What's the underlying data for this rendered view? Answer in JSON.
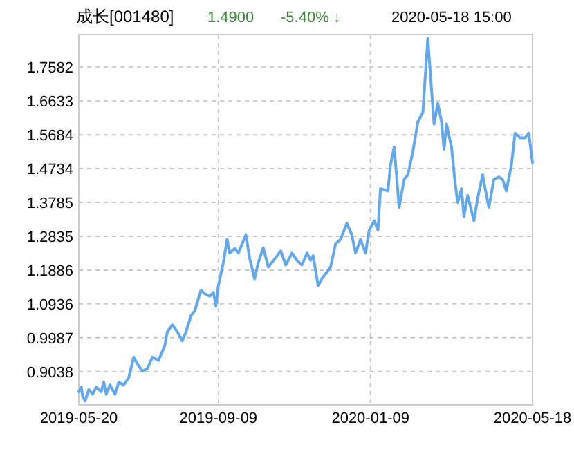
{
  "chart_data": {
    "type": "line",
    "title": "成长[001480]",
    "annotations": [
      "1.4900",
      "-5.40% ↓",
      "2020-05-18 15:00"
    ],
    "xlim": [
      "2019-05-20",
      "2020-05-18"
    ],
    "xticks": [
      "2019-05-20",
      "2019-09-09",
      "2020-01-09",
      "2020-05-18"
    ],
    "ylim": [
      0.81,
      1.85
    ],
    "yticks": [
      0.9038,
      0.9987,
      1.0936,
      1.1886,
      1.2835,
      1.3785,
      1.4734,
      1.5684,
      1.6633,
      1.7582
    ],
    "grid": true,
    "x": [
      "2019-05-20",
      "2019-05-22",
      "2019-05-23",
      "2019-05-25",
      "2019-05-28",
      "2019-05-31",
      "2019-06-03",
      "2019-06-07",
      "2019-06-09",
      "2019-06-11",
      "2019-06-14",
      "2019-06-18",
      "2019-06-21",
      "2019-06-25",
      "2019-06-29",
      "2019-07-03",
      "2019-07-06",
      "2019-07-10",
      "2019-07-14",
      "2019-07-18",
      "2019-07-23",
      "2019-07-28",
      "2019-07-30",
      "2019-08-03",
      "2019-08-07",
      "2019-08-11",
      "2019-08-14",
      "2019-08-18",
      "2019-08-21",
      "2019-08-26",
      "2019-08-29",
      "2019-09-02",
      "2019-09-05",
      "2019-09-07",
      "2019-09-09",
      "2019-09-13",
      "2019-09-16",
      "2019-09-18",
      "2019-09-22",
      "2019-09-25",
      "2019-10-01",
      "2019-10-04",
      "2019-10-08",
      "2019-10-11",
      "2019-10-15",
      "2019-10-19",
      "2019-10-22",
      "2019-10-29",
      "2019-11-02",
      "2019-11-07",
      "2019-11-11",
      "2019-11-15",
      "2019-11-19",
      "2019-11-22",
      "2019-11-24",
      "2019-11-28",
      "2019-12-01",
      "2019-12-08",
      "2019-12-12",
      "2019-12-16",
      "2019-12-21",
      "2019-12-25",
      "2019-12-28",
      "2020-01-01",
      "2020-01-05",
      "2020-01-08",
      "2020-01-12",
      "2020-01-15",
      "2020-01-17",
      "2020-01-23",
      "2020-01-25",
      "2020-01-28",
      "2020-02-01",
      "2020-02-05",
      "2020-02-08",
      "2020-02-12",
      "2020-02-16",
      "2020-02-20",
      "2020-02-24",
      "2020-02-26",
      "2020-02-29",
      "2020-03-03",
      "2020-03-06",
      "2020-03-08",
      "2020-03-10",
      "2020-03-14",
      "2020-03-17",
      "2020-03-19",
      "2020-03-22",
      "2020-03-24",
      "2020-03-27",
      "2020-04-01",
      "2020-04-04",
      "2020-04-08",
      "2020-04-10",
      "2020-04-13",
      "2020-04-17",
      "2020-04-21",
      "2020-04-24",
      "2020-04-27",
      "2020-05-01",
      "2020-05-04",
      "2020-05-08",
      "2020-05-12",
      "2020-05-15",
      "2020-05-18"
    ],
    "series": [
      {
        "color": "#62a8ee",
        "values": [
          0.847,
          0.86,
          0.834,
          0.821,
          0.853,
          0.84,
          0.86,
          0.847,
          0.873,
          0.84,
          0.866,
          0.84,
          0.873,
          0.866,
          0.886,
          0.944,
          0.925,
          0.905,
          0.912,
          0.944,
          0.935,
          0.977,
          1.015,
          1.035,
          1.015,
          0.99,
          1.015,
          1.061,
          1.074,
          1.132,
          1.122,
          1.115,
          1.126,
          1.087,
          1.145,
          1.21,
          1.275,
          1.236,
          1.249,
          1.236,
          1.288,
          1.223,
          1.164,
          1.21,
          1.251,
          1.197,
          1.21,
          1.242,
          1.203,
          1.236,
          1.216,
          1.203,
          1.236,
          1.216,
          1.229,
          1.145,
          1.164,
          1.197,
          1.262,
          1.275,
          1.32,
          1.288,
          1.236,
          1.275,
          1.236,
          1.301,
          1.327,
          1.301,
          1.417,
          1.411,
          1.482,
          1.534,
          1.365,
          1.443,
          1.456,
          1.521,
          1.605,
          1.631,
          1.839,
          1.741,
          1.599,
          1.657,
          1.605,
          1.528,
          1.599,
          1.534,
          1.43,
          1.378,
          1.417,
          1.339,
          1.398,
          1.327,
          1.391,
          1.456,
          1.417,
          1.365,
          1.443,
          1.45,
          1.443,
          1.411,
          1.482,
          1.573,
          1.56,
          1.56,
          1.573,
          1.49
        ]
      }
    ]
  }
}
